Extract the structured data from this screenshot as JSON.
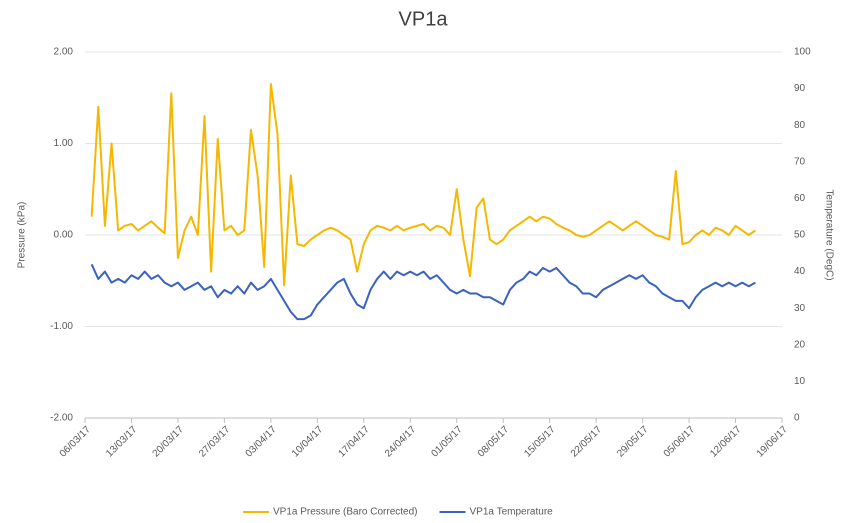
{
  "chart_data": {
    "type": "line",
    "title": "VP1a",
    "y_label": "Pressure (kPa)",
    "y2_label": "Temperature (DegC)",
    "x": [
      "2017-03-07",
      "2017-03-08",
      "2017-03-09",
      "2017-03-10",
      "2017-03-11",
      "2017-03-12",
      "2017-03-13",
      "2017-03-14",
      "2017-03-15",
      "2017-03-16",
      "2017-03-17",
      "2017-03-18",
      "2017-03-19",
      "2017-03-20",
      "2017-03-21",
      "2017-03-22",
      "2017-03-23",
      "2017-03-24",
      "2017-03-25",
      "2017-03-26",
      "2017-03-27",
      "2017-03-28",
      "2017-03-29",
      "2017-03-30",
      "2017-03-31",
      "2017-04-01",
      "2017-04-02",
      "2017-04-03",
      "2017-04-04",
      "2017-04-05",
      "2017-04-06",
      "2017-04-07",
      "2017-04-08",
      "2017-04-09",
      "2017-04-10",
      "2017-04-11",
      "2017-04-12",
      "2017-04-13",
      "2017-04-14",
      "2017-04-15",
      "2017-04-16",
      "2017-04-17",
      "2017-04-18",
      "2017-04-19",
      "2017-04-20",
      "2017-04-21",
      "2017-04-22",
      "2017-04-23",
      "2017-04-24",
      "2017-04-25",
      "2017-04-26",
      "2017-04-27",
      "2017-04-28",
      "2017-04-29",
      "2017-04-30",
      "2017-05-01",
      "2017-05-02",
      "2017-05-03",
      "2017-05-04",
      "2017-05-05",
      "2017-05-06",
      "2017-05-07",
      "2017-05-08",
      "2017-05-09",
      "2017-05-10",
      "2017-05-11",
      "2017-05-12",
      "2017-05-13",
      "2017-05-14",
      "2017-05-15",
      "2017-05-16",
      "2017-05-17",
      "2017-05-18",
      "2017-05-19",
      "2017-05-20",
      "2017-05-21",
      "2017-05-22",
      "2017-05-23",
      "2017-05-24",
      "2017-05-25",
      "2017-05-26",
      "2017-05-27",
      "2017-05-28",
      "2017-05-29",
      "2017-05-30",
      "2017-05-31",
      "2017-06-01",
      "2017-06-02",
      "2017-06-03",
      "2017-06-04",
      "2017-06-05",
      "2017-06-06",
      "2017-06-07",
      "2017-06-08",
      "2017-06-09",
      "2017-06-10",
      "2017-06-11",
      "2017-06-12",
      "2017-06-13",
      "2017-06-14",
      "2017-06-15"
    ],
    "series": [
      {
        "name": "VP1a Pressure (Baro Corrected)",
        "color": "#f5b800",
        "values": [
          0.2,
          1.4,
          0.1,
          1.0,
          0.05,
          0.1,
          0.12,
          0.05,
          0.1,
          0.15,
          0.08,
          0.02,
          1.55,
          -0.25,
          0.05,
          0.2,
          0.0,
          1.3,
          -0.4,
          1.05,
          0.05,
          0.1,
          0.0,
          0.05,
          1.15,
          0.65,
          -0.35,
          1.65,
          1.1,
          -0.55,
          0.65,
          -0.1,
          -0.12,
          -0.05,
          0.0,
          0.05,
          0.08,
          0.05,
          0.0,
          -0.05,
          -0.4,
          -0.1,
          0.05,
          0.1,
          0.08,
          0.05,
          0.1,
          0.05,
          0.08,
          0.1,
          0.12,
          0.05,
          0.1,
          0.08,
          0.0,
          0.5,
          -0.05,
          -0.45,
          0.3,
          0.4,
          -0.05,
          -0.1,
          -0.05,
          0.05,
          0.1,
          0.15,
          0.2,
          0.15,
          0.2,
          0.18,
          0.12,
          0.08,
          0.05,
          0.0,
          -0.02,
          0.0,
          0.05,
          0.1,
          0.15,
          0.1,
          0.05,
          0.1,
          0.15,
          0.1,
          0.05,
          0.0,
          -0.02,
          -0.05,
          0.7,
          -0.1,
          -0.08,
          0.0,
          0.05,
          0.0,
          0.08,
          0.05,
          0.0,
          0.1,
          0.05,
          0.0,
          0.05
        ]
      },
      {
        "name": "VP1a Temperature",
        "color": "#3a62c0",
        "axis": "y2",
        "values": [
          42,
          38,
          40,
          37,
          38,
          37,
          39,
          38,
          40,
          38,
          39,
          37,
          36,
          37,
          35,
          36,
          37,
          35,
          36,
          33,
          35,
          34,
          36,
          34,
          37,
          35,
          36,
          38,
          35,
          32,
          29,
          27,
          27,
          28,
          31,
          33,
          35,
          37,
          38,
          34,
          31,
          30,
          35,
          38,
          40,
          38,
          40,
          39,
          40,
          39,
          40,
          38,
          39,
          37,
          35,
          34,
          35,
          34,
          34,
          33,
          33,
          32,
          31,
          35,
          37,
          38,
          40,
          39,
          41,
          40,
          41,
          39,
          37,
          36,
          34,
          34,
          33,
          35,
          36,
          37,
          38,
          39,
          38,
          39,
          37,
          36,
          34,
          33,
          32,
          32,
          30,
          33,
          35,
          36,
          37,
          36,
          37,
          36,
          37,
          36,
          37
        ]
      }
    ],
    "xlim": [
      "2017-03-06",
      "2017-06-19"
    ],
    "xticks": [
      {
        "value": "2017-03-06",
        "label": "06/03/17"
      },
      {
        "value": "2017-03-13",
        "label": "13/03/17"
      },
      {
        "value": "2017-03-20",
        "label": "20/03/17"
      },
      {
        "value": "2017-03-27",
        "label": "27/03/17"
      },
      {
        "value": "2017-04-03",
        "label": "03/04/17"
      },
      {
        "value": "2017-04-10",
        "label": "10/04/17"
      },
      {
        "value": "2017-04-17",
        "label": "17/04/17"
      },
      {
        "value": "2017-04-24",
        "label": "24/04/17"
      },
      {
        "value": "2017-05-01",
        "label": "01/05/17"
      },
      {
        "value": "2017-05-08",
        "label": "08/05/17"
      },
      {
        "value": "2017-05-15",
        "label": "15/05/17"
      },
      {
        "value": "2017-05-22",
        "label": "22/05/17"
      },
      {
        "value": "2017-05-29",
        "label": "29/05/17"
      },
      {
        "value": "2017-06-05",
        "label": "05/06/17"
      },
      {
        "value": "2017-06-12",
        "label": "12/06/17"
      },
      {
        "value": "2017-06-19",
        "label": "19/06/17"
      }
    ],
    "ylim": [
      -2,
      2
    ],
    "yticks": [
      {
        "value": -2,
        "label": "-2.00"
      },
      {
        "value": -1,
        "label": "-1.00"
      },
      {
        "value": 0,
        "label": "0.00"
      },
      {
        "value": 1,
        "label": "1.00"
      },
      {
        "value": 2,
        "label": "2.00"
      }
    ],
    "y2lim": [
      0,
      100
    ],
    "y2ticks": [
      0,
      10,
      20,
      30,
      40,
      50,
      60,
      70,
      80,
      90,
      100
    ],
    "grid": true,
    "legend": "bottom"
  }
}
